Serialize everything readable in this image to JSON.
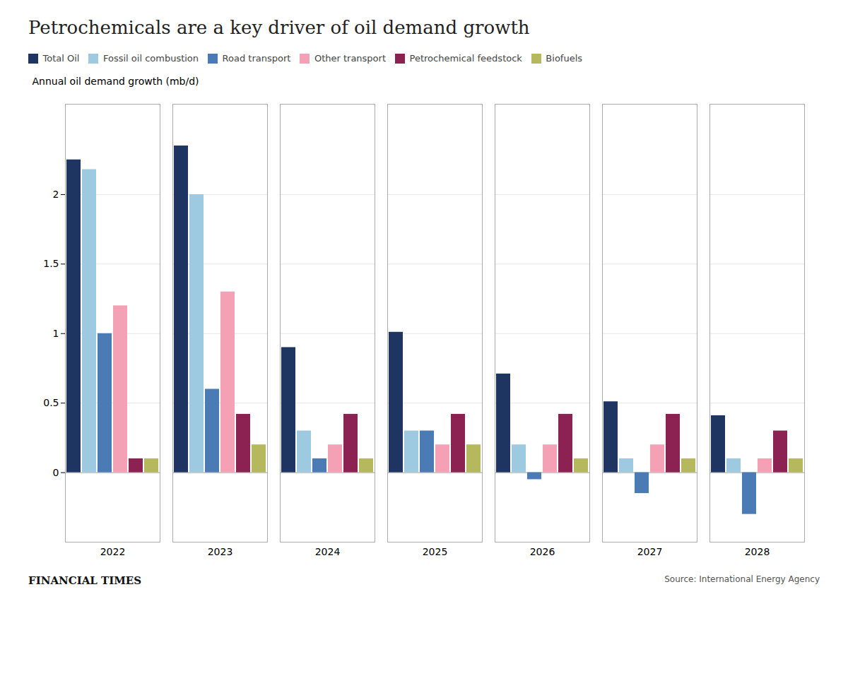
{
  "chart_data": {
    "type": "bar",
    "title": "Petrochemicals are a key driver of oil demand growth",
    "ylabel": "Annual oil demand growth (mb/d)",
    "categories": [
      "2022",
      "2023",
      "2024",
      "2025",
      "2026",
      "2027",
      "2028"
    ],
    "series": [
      {
        "name": "Total Oil",
        "color": "#1e3461",
        "values": [
          2.25,
          2.35,
          0.9,
          1.01,
          0.71,
          0.51,
          0.41
        ]
      },
      {
        "name": "Fossil oil combustion",
        "color": "#9ecae1",
        "values": [
          2.18,
          2.0,
          0.3,
          0.3,
          0.2,
          0.1,
          0.1
        ]
      },
      {
        "name": "Road transport",
        "color": "#4a7bb5",
        "values": [
          1.0,
          0.6,
          0.1,
          0.3,
          -0.05,
          -0.15,
          -0.3
        ]
      },
      {
        "name": "Other transport",
        "color": "#f4a0b5",
        "values": [
          1.2,
          1.3,
          0.2,
          0.2,
          0.2,
          0.2,
          0.1
        ]
      },
      {
        "name": "Petrochemical feedstock",
        "color": "#8b2252",
        "values": [
          0.1,
          0.42,
          0.42,
          0.42,
          0.42,
          0.42,
          0.3
        ]
      },
      {
        "name": "Biofuels",
        "color": "#b5b85c",
        "values": [
          0.1,
          0.2,
          0.1,
          0.2,
          0.1,
          0.1,
          0.1
        ]
      }
    ],
    "ylim": [
      -0.5,
      2.65
    ],
    "yticks": [
      0,
      0.5,
      1,
      1.5,
      2
    ],
    "grid": true,
    "legend": "upper left",
    "annotations": [
      "FINANCIAL TIMES",
      "Source: International Energy Agency"
    ]
  }
}
